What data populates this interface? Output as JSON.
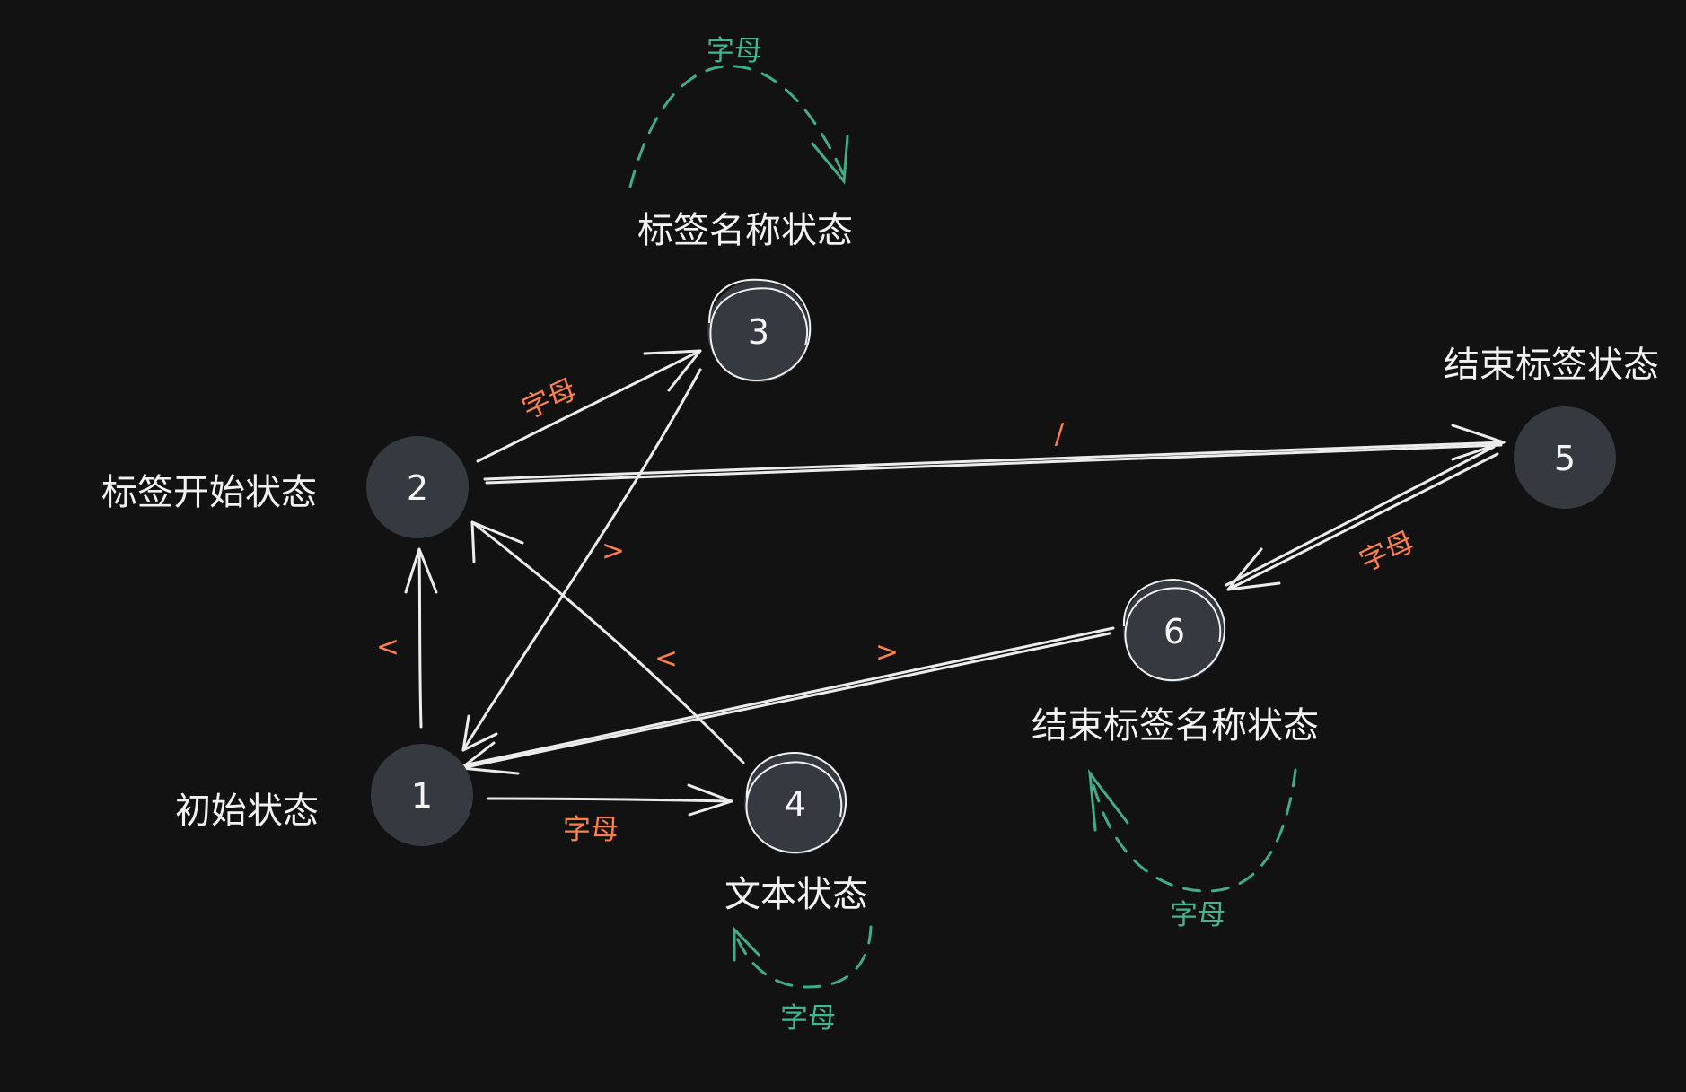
{
  "states": [
    {
      "id": "1",
      "label": "初始状态"
    },
    {
      "id": "2",
      "label": "标签开始状态"
    },
    {
      "id": "3",
      "label": "标签名称状态"
    },
    {
      "id": "4",
      "label": "文本状态"
    },
    {
      "id": "5",
      "label": "结束标签状态"
    },
    {
      "id": "6",
      "label": "结束标签名称状态"
    }
  ],
  "transitions": [
    {
      "from": "1",
      "to": "2",
      "label": "<"
    },
    {
      "from": "2",
      "to": "3",
      "label": "字母"
    },
    {
      "from": "3",
      "to": "1",
      "label": ">"
    },
    {
      "from": "1",
      "to": "4",
      "label": "字母"
    },
    {
      "from": "4",
      "to": "2",
      "label": "<"
    },
    {
      "from": "2",
      "to": "5",
      "label": "/"
    },
    {
      "from": "5",
      "to": "6",
      "label": "字母"
    },
    {
      "from": "6",
      "to": "1",
      "label": ">"
    },
    {
      "from": "3",
      "to": "3",
      "label": "字母"
    },
    {
      "from": "4",
      "to": "4",
      "label": "字母"
    },
    {
      "from": "6",
      "to": "6",
      "label": "字母"
    }
  ],
  "colors": {
    "background": "#121212",
    "node_fill": "#343a40",
    "edge": "#ececec",
    "label_orange": "#ff7f48",
    "label_green": "#3fb88e"
  }
}
